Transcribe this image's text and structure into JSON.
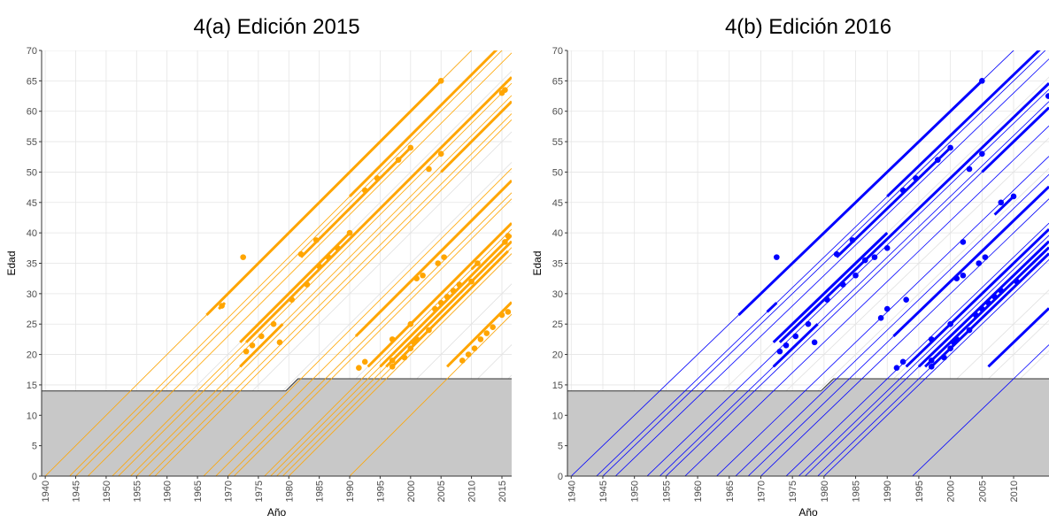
{
  "chart_data": [
    {
      "type": "lexis",
      "title": "4(a) Edición 2015",
      "xlabel": "Año",
      "ylabel": "Edad",
      "color": "#ffa500",
      "xlim": [
        1939.4,
        2016.6
      ],
      "ylim": [
        0,
        70
      ],
      "xticks": [
        1940,
        1945,
        1950,
        1955,
        1960,
        1965,
        1970,
        1975,
        1980,
        1985,
        1990,
        1995,
        2000,
        2005,
        2010,
        2015
      ],
      "yticks": [
        0,
        5,
        10,
        15,
        20,
        25,
        30,
        35,
        40,
        45,
        50,
        55,
        60,
        65,
        70
      ],
      "grid": true,
      "threshold": {
        "x": [
          1939.4,
          1979.5,
          1981.5,
          2016.6
        ],
        "values": [
          14,
          14,
          16,
          16
        ]
      },
      "births": [
        1940,
        1944,
        1945,
        1947,
        1951,
        1952,
        1954,
        1955,
        1957,
        1958,
        1966,
        1968,
        1970,
        1971,
        1976,
        1977,
        1978,
        1979,
        1980,
        1990
      ],
      "segments": {
        "start": [
          1966.5,
          1968.5,
          1973,
          1982,
          1972,
          1972,
          1990,
          2005,
          1991,
          1993,
          1996,
          1995,
          2006,
          1997,
          2010
        ],
        "end": [
          2005,
          1969.5,
          2016.6,
          2000,
          1990,
          1979,
          2016.6,
          2016.6,
          2016.6,
          2016.6,
          2016.6,
          2016.6,
          2016.6,
          2016,
          2011
        ],
        "births": [
          1940,
          1941,
          1951,
          1946,
          1950,
          1954,
          1944,
          1955,
          1968,
          1975,
          1978,
          1977,
          1988,
          1979,
          1976
        ]
      },
      "points": {
        "x": [
          2005,
          1972.5,
          1969,
          1978.5,
          1982,
          1984.5,
          1992.5,
          1994.5,
          1998,
          2000,
          2003,
          2005,
          2015,
          2015.5,
          1990,
          1988,
          1986.5,
          1985,
          1983,
          1980.5,
          1977.5,
          1975.5,
          1974,
          1973,
          1991.5,
          1992.5,
          1997,
          1997,
          1999,
          2000,
          2000.5,
          2001,
          1997,
          2000,
          2004,
          2005,
          2006,
          2007,
          2008,
          2004.5,
          2005.5,
          2001,
          2002,
          2003,
          2008.5,
          2009.5,
          2010.5,
          2011.5,
          2012.5,
          2013.5,
          2015,
          2016,
          2015.5,
          2016,
          2010,
          2011
        ],
        "values": [
          65,
          36,
          28,
          22,
          36.5,
          38.8,
          47,
          49,
          52,
          54,
          50.5,
          53,
          63,
          63.5,
          40,
          37.5,
          36,
          34.5,
          31.5,
          29,
          25,
          23,
          21.5,
          20.5,
          17.8,
          18.8,
          18,
          19,
          19.5,
          21,
          22,
          22.5,
          22.5,
          25,
          27.5,
          28.5,
          29.5,
          30.5,
          31.5,
          35,
          36,
          32.5,
          33,
          24,
          19,
          20,
          21,
          22.5,
          23.5,
          24.5,
          26.5,
          27,
          38.5,
          39.5,
          32,
          35
        ]
      }
    },
    {
      "type": "lexis",
      "title": "4(b) Edición 2016",
      "xlabel": "Año",
      "ylabel": "Edad",
      "color": "#0000ff",
      "xlim": [
        1939.4,
        2015.6
      ],
      "ylim": [
        0,
        70
      ],
      "xticks": [
        1940,
        1945,
        1950,
        1955,
        1960,
        1965,
        1970,
        1975,
        1980,
        1985,
        1990,
        1995,
        2000,
        2005,
        2010
      ],
      "yticks": [
        0,
        5,
        10,
        15,
        20,
        25,
        30,
        35,
        40,
        45,
        50,
        55,
        60,
        65,
        70
      ],
      "grid": true,
      "threshold": {
        "x": [
          1939.4,
          1979.5,
          1981.5,
          2015.6
        ],
        "values": [
          14,
          14,
          16,
          16
        ]
      },
      "births": [
        1940,
        1944,
        1945,
        1947,
        1952,
        1954,
        1955,
        1958,
        1963,
        1966,
        1968,
        1970,
        1974,
        1976,
        1977,
        1979,
        1980,
        1994
      ],
      "segments": {
        "start": [
          1966.5,
          1971,
          1973,
          1982,
          1972,
          1972,
          1990,
          2005,
          1991,
          1993,
          1996,
          1995,
          2006,
          1997,
          2007
        ],
        "end": [
          2005,
          1972.5,
          2015.6,
          2000,
          1990,
          1979,
          2015.6,
          2015.6,
          2015.6,
          2015.6,
          2015.6,
          2015.6,
          2015.6,
          2015.6,
          2010
        ],
        "births": [
          1940,
          1944,
          1951,
          1946,
          1950,
          1954,
          1944,
          1955,
          1968,
          1975,
          1978,
          1977,
          1988,
          1979,
          1964
        ]
      },
      "points": {
        "x": [
          2005,
          1972.5,
          1978.5,
          1982,
          1984.5,
          1992.5,
          1994.5,
          1998,
          2000,
          2003,
          2005,
          2015.5,
          1990,
          1988,
          1986.5,
          1985,
          1983,
          1980.5,
          1977.5,
          1975.5,
          1974,
          1973,
          1991.5,
          1992.5,
          1997,
          1997,
          1999,
          2000,
          2000.5,
          2001,
          1997,
          2000,
          2004,
          2005,
          2006,
          2007,
          2008,
          2004.5,
          2005.5,
          2001,
          2002,
          2003,
          2008,
          2010,
          2002,
          2010.5,
          1989,
          1990,
          1993
        ],
        "values": [
          65,
          36,
          22,
          36.5,
          38.8,
          47,
          49,
          52,
          54,
          50.5,
          53,
          62.5,
          37.5,
          36,
          35.5,
          33,
          31.5,
          29,
          25,
          23,
          21.5,
          20.5,
          17.8,
          18.8,
          18,
          19,
          19.5,
          21,
          22,
          22.5,
          22.5,
          25,
          26.5,
          27.5,
          28.5,
          29.5,
          30.5,
          35,
          36,
          32.5,
          33,
          24,
          45,
          46,
          38.5,
          32,
          26,
          27.5,
          29
        ]
      }
    }
  ]
}
